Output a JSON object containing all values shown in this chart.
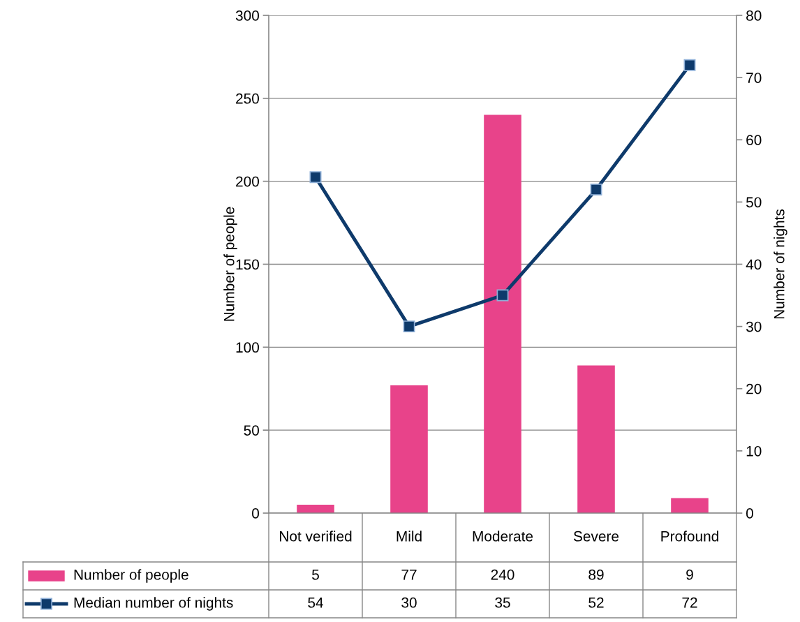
{
  "chart_data": {
    "type": "bar",
    "categories": [
      "Not verified",
      "Mild",
      "Moderate",
      "Severe",
      "Profound"
    ],
    "series": [
      {
        "name": "Number of people",
        "color": "#e8438a",
        "values": [
          5,
          77,
          240,
          89,
          9
        ]
      },
      {
        "name": "Median number of nights",
        "type": "line",
        "axis": "y2",
        "color": "#0e3a6b",
        "values": [
          54,
          30,
          35,
          52,
          72
        ]
      }
    ],
    "ylabel": "Number of people",
    "y2label": "Number of nights",
    "ylim": [
      0,
      300
    ],
    "yticks": [
      0,
      50,
      100,
      150,
      200,
      250,
      300
    ],
    "y2lim": [
      0,
      80
    ],
    "y2ticks": [
      0,
      10,
      20,
      30,
      40,
      50,
      60,
      70,
      80
    ],
    "grid": "y",
    "legend": "bottom",
    "data_labels": true,
    "marker": "square",
    "line_style": "solid"
  }
}
